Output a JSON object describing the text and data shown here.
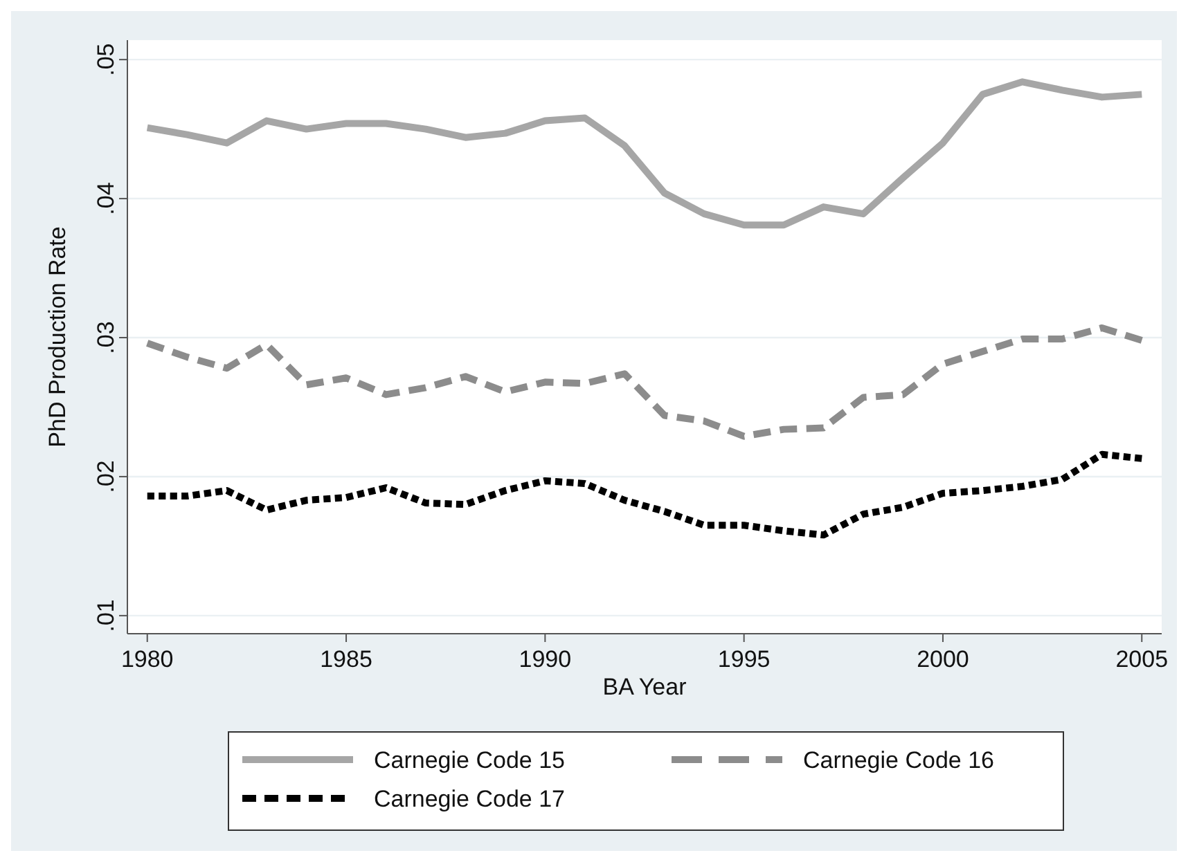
{
  "chart_data": {
    "type": "line",
    "xlabel": "BA Year",
    "ylabel": "PhD Production Rate",
    "x": [
      1980,
      1981,
      1982,
      1983,
      1984,
      1985,
      1986,
      1987,
      1988,
      1989,
      1990,
      1991,
      1992,
      1993,
      1994,
      1995,
      1996,
      1997,
      1998,
      1999,
      2000,
      2001,
      2002,
      2003,
      2004,
      2005
    ],
    "series": [
      {
        "name": "Carnegie Code 15",
        "color": "#a6a6a6",
        "line_style": "solid",
        "values": [
          0.0451,
          0.0446,
          0.044,
          0.0456,
          0.045,
          0.0454,
          0.0454,
          0.045,
          0.0444,
          0.0447,
          0.0456,
          0.0458,
          0.0438,
          0.0404,
          0.0389,
          0.0381,
          0.0381,
          0.0394,
          0.0389,
          0.0415,
          0.044,
          0.0475,
          0.0484,
          0.0478,
          0.0473,
          0.0475
        ]
      },
      {
        "name": "Carnegie Code 16",
        "color": "#8c8c8c",
        "line_style": "dashed",
        "values": [
          0.0296,
          0.0286,
          0.0278,
          0.0295,
          0.0266,
          0.0271,
          0.0259,
          0.0264,
          0.0272,
          0.0261,
          0.0268,
          0.0267,
          0.0274,
          0.0244,
          0.024,
          0.0229,
          0.0234,
          0.0235,
          0.0257,
          0.0259,
          0.0281,
          0.029,
          0.0299,
          0.0299,
          0.0307,
          0.0298
        ]
      },
      {
        "name": "Carnegie Code 17",
        "color": "#000000",
        "line_style": "dotted",
        "values": [
          0.0186,
          0.0186,
          0.019,
          0.0176,
          0.0183,
          0.0185,
          0.0192,
          0.0181,
          0.018,
          0.019,
          0.0197,
          0.0195,
          0.0183,
          0.0175,
          0.0165,
          0.0165,
          0.0161,
          0.0158,
          0.0173,
          0.0178,
          0.0188,
          0.019,
          0.0193,
          0.0198,
          0.0216,
          0.0213
        ]
      }
    ],
    "xlim": [
      1979.5,
      2005.5
    ],
    "xticks": [
      1980,
      1985,
      1990,
      1995,
      2000,
      2005
    ],
    "ylim": [
      0.0087,
      0.0514
    ],
    "yticks": [
      {
        "value": 0.01,
        "label": ".01"
      },
      {
        "value": 0.02,
        "label": ".02"
      },
      {
        "value": 0.03,
        "label": ".03"
      },
      {
        "value": 0.04,
        "label": ".04"
      },
      {
        "value": 0.05,
        "label": ".05"
      }
    ],
    "grid": "y",
    "legend": "bottom"
  }
}
